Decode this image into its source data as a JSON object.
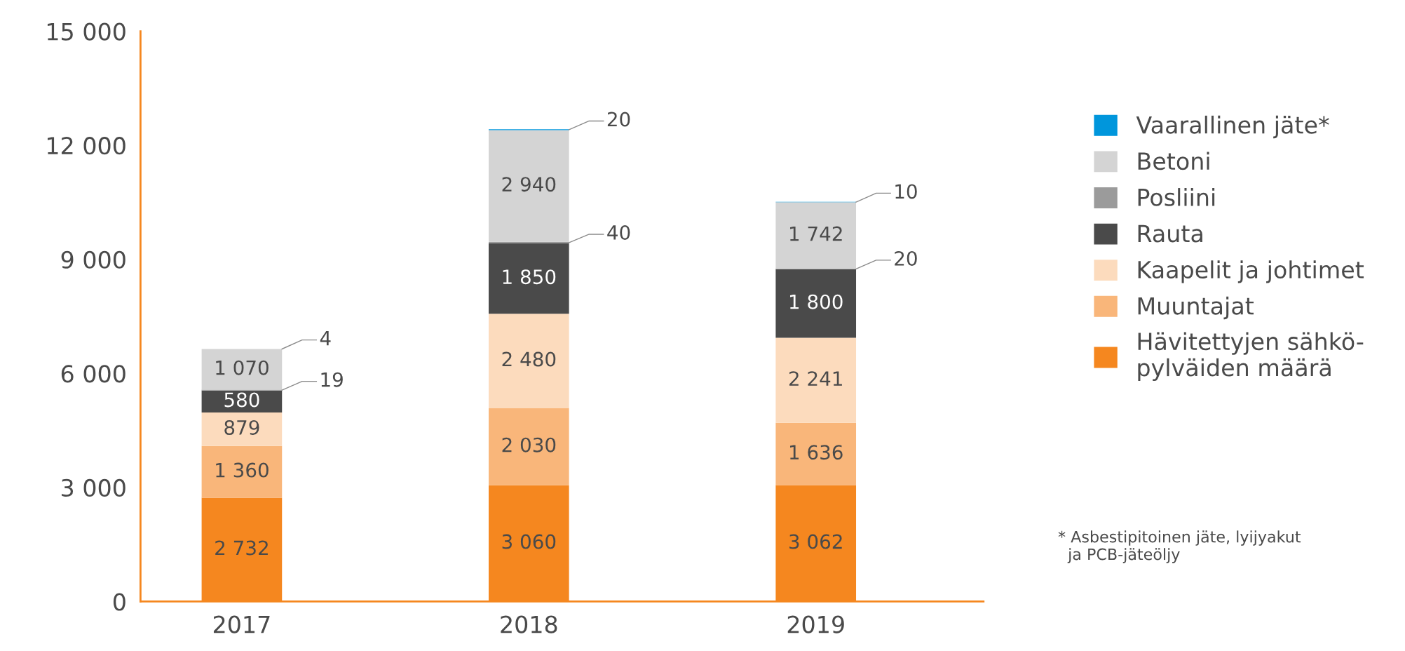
{
  "chart_data": {
    "type": "bar",
    "stacked": true,
    "categories": [
      "2017",
      "2018",
      "2019"
    ],
    "series": [
      {
        "name": "Hävitettyjen sähkö-\npylväiden määrä",
        "color": "#f5871f",
        "values": [
          2732,
          3060,
          3062
        ],
        "value_labels": [
          "2 732",
          "3 060",
          "3 062"
        ]
      },
      {
        "name": "Muuntajat",
        "color": "#f9b67a",
        "values": [
          1360,
          2030,
          1636
        ],
        "value_labels": [
          "1 360",
          "2 030",
          "1 636"
        ]
      },
      {
        "name": "Kaapelit ja johtimet",
        "color": "#fcdbbd",
        "values": [
          879,
          2480,
          2241
        ],
        "value_labels": [
          "879",
          "2 480",
          "2 241"
        ]
      },
      {
        "name": "Rauta",
        "color": "#4a4a4a",
        "values": [
          580,
          1850,
          1800
        ],
        "value_labels": [
          "580",
          "1 850",
          "1 800"
        ]
      },
      {
        "name": "Posliini",
        "color": "#9b9b9b",
        "values": [
          19,
          40,
          20
        ],
        "value_labels": [
          "19",
          "40",
          "20"
        ]
      },
      {
        "name": "Betoni",
        "color": "#d4d4d4",
        "values": [
          1070,
          2940,
          1742
        ],
        "value_labels": [
          "1 070",
          "2 940",
          "1 742"
        ]
      },
      {
        "name": "Vaarallinen jäte*",
        "color": "#0096dc",
        "values": [
          4,
          20,
          10
        ],
        "value_labels": [
          "4",
          "20",
          "10"
        ]
      }
    ],
    "ylim": [
      0,
      15000
    ],
    "yticks": [
      {
        "value": 0,
        "label": "0"
      },
      {
        "value": 3000,
        "label": "3 000"
      },
      {
        "value": 6000,
        "label": "6 000"
      },
      {
        "value": 9000,
        "label": "9 000"
      },
      {
        "value": 12000,
        "label": "12 000"
      },
      {
        "value": 15000,
        "label": "15 000"
      }
    ],
    "grid": false,
    "legend": "right",
    "annotations": [
      "* Asbestipitoinen jäte, lyijyakut\n  ja PCB-jäteöljy"
    ]
  }
}
